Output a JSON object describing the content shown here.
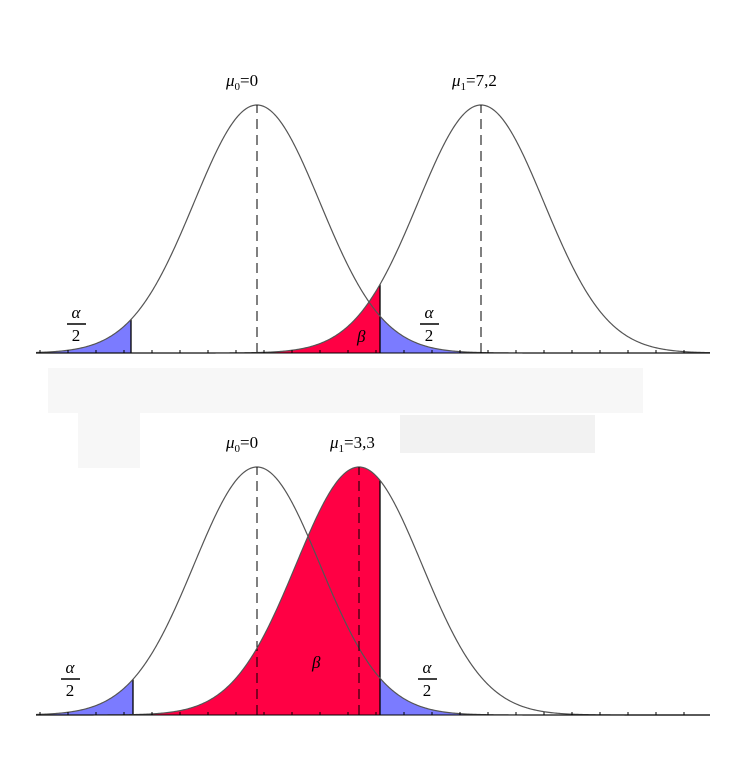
{
  "panels": [
    {
      "mu0": {
        "symbol": "μ",
        "sub": "0",
        "rest": "=0"
      },
      "mu1": {
        "symbol": "μ",
        "sub": "1",
        "rest": "=7,2"
      },
      "alpha_left": {
        "num": "α",
        "den": "2"
      },
      "alpha_right": {
        "num": "α",
        "den": "2"
      },
      "beta": "β"
    },
    {
      "mu0": {
        "symbol": "μ",
        "sub": "0",
        "rest": "=0"
      },
      "mu1": {
        "symbol": "μ",
        "sub": "1",
        "rest": "=3,3"
      },
      "alpha_left": {
        "num": "α",
        "den": "2"
      },
      "alpha_right": {
        "num": "α",
        "den": "2"
      },
      "beta": "β"
    }
  ]
}
